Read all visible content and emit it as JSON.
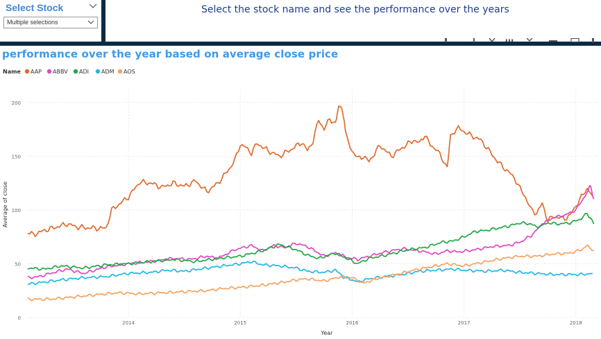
{
  "slicer": {
    "title": "Select Stock",
    "selection": "Multiple selections",
    "chevron_icon": "chevron-down-icon"
  },
  "banner": {
    "text": "Select the stock name and see the performance over the years"
  },
  "chart_data": {
    "type": "line",
    "title": "performance over the year based on average close price",
    "legend_title": "Name",
    "legend_position": "top-left",
    "xlabel": "Year",
    "ylabel": "Average of close",
    "xlim": [
      2013.1,
      2018.2
    ],
    "ylim": [
      0,
      205
    ],
    "x_ticks": [
      2014,
      2015,
      2016,
      2017,
      2018
    ],
    "y_ticks": [
      0,
      50,
      100,
      150,
      200
    ],
    "grid": true,
    "series": [
      {
        "name": "AAP",
        "color": "#e06b2e",
        "points": [
          [
            2013.1,
            79
          ],
          [
            2013.15,
            77
          ],
          [
            2013.25,
            81
          ],
          [
            2013.35,
            84
          ],
          [
            2013.45,
            87
          ],
          [
            2013.55,
            84
          ],
          [
            2013.7,
            83
          ],
          [
            2013.8,
            83
          ],
          [
            2013.85,
            100
          ],
          [
            2013.9,
            104
          ],
          [
            2014.0,
            112
          ],
          [
            2014.1,
            126
          ],
          [
            2014.2,
            125
          ],
          [
            2014.3,
            121
          ],
          [
            2014.4,
            125
          ],
          [
            2014.5,
            122
          ],
          [
            2014.6,
            127
          ],
          [
            2014.7,
            117
          ],
          [
            2014.8,
            125
          ],
          [
            2014.9,
            138
          ],
          [
            2014.95,
            146
          ],
          [
            2015.0,
            161
          ],
          [
            2015.05,
            158
          ],
          [
            2015.1,
            153
          ],
          [
            2015.15,
            162
          ],
          [
            2015.25,
            155
          ],
          [
            2015.35,
            150
          ],
          [
            2015.45,
            156
          ],
          [
            2015.55,
            163
          ],
          [
            2015.6,
            155
          ],
          [
            2015.65,
            164
          ],
          [
            2015.7,
            184
          ],
          [
            2015.75,
            175
          ],
          [
            2015.8,
            185
          ],
          [
            2015.85,
            180
          ],
          [
            2015.88,
            198
          ],
          [
            2015.92,
            190
          ],
          [
            2015.95,
            167
          ],
          [
            2016.0,
            155
          ],
          [
            2016.05,
            148
          ],
          [
            2016.1,
            150
          ],
          [
            2016.15,
            145
          ],
          [
            2016.25,
            160
          ],
          [
            2016.35,
            150
          ],
          [
            2016.45,
            158
          ],
          [
            2016.55,
            165
          ],
          [
            2016.6,
            162
          ],
          [
            2016.65,
            170
          ],
          [
            2016.7,
            160
          ],
          [
            2016.75,
            157
          ],
          [
            2016.85,
            140
          ],
          [
            2016.88,
            170
          ],
          [
            2016.95,
            176
          ],
          [
            2017.05,
            170
          ],
          [
            2017.15,
            165
          ],
          [
            2017.3,
            145
          ],
          [
            2017.4,
            135
          ],
          [
            2017.45,
            130
          ],
          [
            2017.5,
            120
          ],
          [
            2017.55,
            112
          ],
          [
            2017.6,
            100
          ],
          [
            2017.65,
            97
          ],
          [
            2017.7,
            106
          ],
          [
            2017.75,
            90
          ],
          [
            2017.8,
            94
          ],
          [
            2017.9,
            92
          ],
          [
            2017.95,
            95
          ],
          [
            2018.0,
            104
          ],
          [
            2018.05,
            112
          ],
          [
            2018.1,
            120
          ],
          [
            2018.15,
            113
          ]
        ]
      },
      {
        "name": "ABBV",
        "color": "#e046c4",
        "points": [
          [
            2013.1,
            37
          ],
          [
            2013.2,
            38
          ],
          [
            2013.3,
            41
          ],
          [
            2013.45,
            45
          ],
          [
            2013.6,
            41
          ],
          [
            2013.8,
            47
          ],
          [
            2014.0,
            50
          ],
          [
            2014.2,
            52
          ],
          [
            2014.4,
            55
          ],
          [
            2014.55,
            54
          ],
          [
            2014.7,
            57
          ],
          [
            2014.8,
            55
          ],
          [
            2014.95,
            63
          ],
          [
            2015.1,
            67
          ],
          [
            2015.2,
            62
          ],
          [
            2015.3,
            67
          ],
          [
            2015.4,
            65
          ],
          [
            2015.5,
            69
          ],
          [
            2015.6,
            66
          ],
          [
            2015.75,
            57
          ],
          [
            2015.85,
            60
          ],
          [
            2015.95,
            56
          ],
          [
            2016.05,
            54
          ],
          [
            2016.15,
            57
          ],
          [
            2016.3,
            61
          ],
          [
            2016.45,
            64
          ],
          [
            2016.6,
            62
          ],
          [
            2016.75,
            59
          ],
          [
            2016.85,
            62
          ],
          [
            2016.95,
            61
          ],
          [
            2017.1,
            63
          ],
          [
            2017.25,
            66
          ],
          [
            2017.4,
            67
          ],
          [
            2017.5,
            70
          ],
          [
            2017.6,
            76
          ],
          [
            2017.7,
            87
          ],
          [
            2017.8,
            93
          ],
          [
            2017.9,
            95
          ],
          [
            2018.0,
            100
          ],
          [
            2018.05,
            108
          ],
          [
            2018.1,
            116
          ],
          [
            2018.13,
            123
          ],
          [
            2018.16,
            110
          ]
        ]
      },
      {
        "name": "ADI",
        "color": "#23a644",
        "points": [
          [
            2013.1,
            46
          ],
          [
            2013.25,
            45
          ],
          [
            2013.4,
            48
          ],
          [
            2013.6,
            46
          ],
          [
            2013.8,
            49
          ],
          [
            2014.0,
            50
          ],
          [
            2014.2,
            52
          ],
          [
            2014.4,
            54
          ],
          [
            2014.6,
            52
          ],
          [
            2014.8,
            55
          ],
          [
            2015.0,
            57
          ],
          [
            2015.2,
            62
          ],
          [
            2015.35,
            68
          ],
          [
            2015.5,
            63
          ],
          [
            2015.6,
            58
          ],
          [
            2015.7,
            55
          ],
          [
            2015.85,
            60
          ],
          [
            2015.95,
            55
          ],
          [
            2016.05,
            50
          ],
          [
            2016.15,
            55
          ],
          [
            2016.3,
            58
          ],
          [
            2016.5,
            63
          ],
          [
            2016.65,
            65
          ],
          [
            2016.8,
            70
          ],
          [
            2016.9,
            71
          ],
          [
            2017.0,
            75
          ],
          [
            2017.1,
            80
          ],
          [
            2017.2,
            81
          ],
          [
            2017.3,
            83
          ],
          [
            2017.4,
            85
          ],
          [
            2017.5,
            88
          ],
          [
            2017.6,
            87
          ],
          [
            2017.65,
            84
          ],
          [
            2017.75,
            88
          ],
          [
            2017.85,
            87
          ],
          [
            2017.95,
            88
          ],
          [
            2018.05,
            92
          ],
          [
            2018.1,
            97
          ],
          [
            2018.16,
            87
          ]
        ]
      },
      {
        "name": "ADM",
        "color": "#1fb8e6",
        "points": [
          [
            2013.1,
            31
          ],
          [
            2013.25,
            33
          ],
          [
            2013.4,
            35
          ],
          [
            2013.6,
            37
          ],
          [
            2013.8,
            38
          ],
          [
            2014.0,
            41
          ],
          [
            2014.2,
            42
          ],
          [
            2014.35,
            44
          ],
          [
            2014.5,
            43
          ],
          [
            2014.7,
            46
          ],
          [
            2014.85,
            48
          ],
          [
            2015.0,
            50
          ],
          [
            2015.1,
            52
          ],
          [
            2015.2,
            49
          ],
          [
            2015.35,
            48
          ],
          [
            2015.5,
            46
          ],
          [
            2015.6,
            43
          ],
          [
            2015.75,
            42
          ],
          [
            2015.85,
            44
          ],
          [
            2015.92,
            38
          ],
          [
            2016.0,
            35
          ],
          [
            2016.05,
            33
          ],
          [
            2016.15,
            36
          ],
          [
            2016.3,
            38
          ],
          [
            2016.45,
            40
          ],
          [
            2016.6,
            43
          ],
          [
            2016.75,
            44
          ],
          [
            2016.9,
            45
          ],
          [
            2017.0,
            44
          ],
          [
            2017.2,
            43
          ],
          [
            2017.35,
            44
          ],
          [
            2017.5,
            42
          ],
          [
            2017.65,
            41
          ],
          [
            2017.8,
            40
          ],
          [
            2017.95,
            40
          ],
          [
            2018.05,
            40
          ],
          [
            2018.15,
            41
          ]
        ]
      },
      {
        "name": "AOS",
        "color": "#f5a25d",
        "points": [
          [
            2013.1,
            17
          ],
          [
            2013.3,
            17
          ],
          [
            2013.5,
            19
          ],
          [
            2013.7,
            21
          ],
          [
            2013.9,
            23
          ],
          [
            2014.1,
            22
          ],
          [
            2014.3,
            23
          ],
          [
            2014.5,
            24
          ],
          [
            2014.7,
            25
          ],
          [
            2014.85,
            27
          ],
          [
            2015.0,
            28
          ],
          [
            2015.2,
            30
          ],
          [
            2015.4,
            33
          ],
          [
            2015.5,
            35
          ],
          [
            2015.6,
            36
          ],
          [
            2015.75,
            34
          ],
          [
            2015.9,
            38
          ],
          [
            2016.0,
            37
          ],
          [
            2016.1,
            32
          ],
          [
            2016.25,
            37
          ],
          [
            2016.4,
            40
          ],
          [
            2016.55,
            44
          ],
          [
            2016.7,
            47
          ],
          [
            2016.85,
            50
          ],
          [
            2017.0,
            48
          ],
          [
            2017.2,
            52
          ],
          [
            2017.35,
            55
          ],
          [
            2017.5,
            57
          ],
          [
            2017.65,
            57
          ],
          [
            2017.8,
            59
          ],
          [
            2017.95,
            60
          ],
          [
            2018.05,
            63
          ],
          [
            2018.1,
            67
          ],
          [
            2018.16,
            62
          ]
        ]
      }
    ]
  }
}
